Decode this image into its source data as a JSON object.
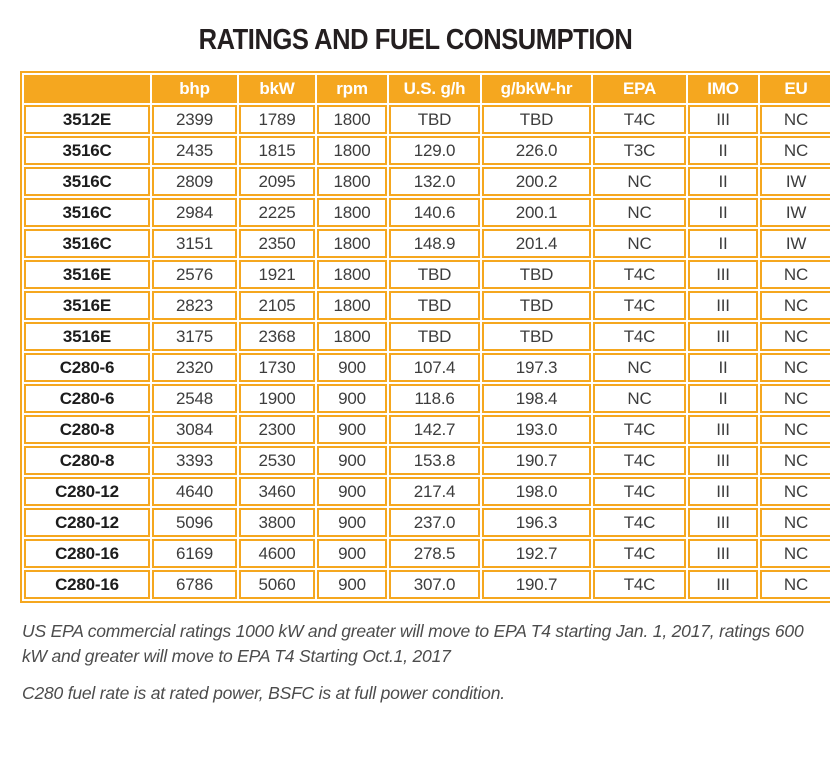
{
  "title": "RATINGS AND FUEL CONSUMPTION",
  "table": {
    "columns": [
      "",
      "bhp",
      "bkW",
      "rpm",
      "U.S. g/h",
      "g/bkW-hr",
      "EPA",
      "IMO",
      "EU"
    ],
    "rows": [
      [
        "3512E",
        "2399",
        "1789",
        "1800",
        "TBD",
        "TBD",
        "T4C",
        "III",
        "NC"
      ],
      [
        "3516C",
        "2435",
        "1815",
        "1800",
        "129.0",
        "226.0",
        "T3C",
        "II",
        "NC"
      ],
      [
        "3516C",
        "2809",
        "2095",
        "1800",
        "132.0",
        "200.2",
        "NC",
        "II",
        "IW"
      ],
      [
        "3516C",
        "2984",
        "2225",
        "1800",
        "140.6",
        "200.1",
        "NC",
        "II",
        "IW"
      ],
      [
        "3516C",
        "3151",
        "2350",
        "1800",
        "148.9",
        "201.4",
        "NC",
        "II",
        "IW"
      ],
      [
        "3516E",
        "2576",
        "1921",
        "1800",
        "TBD",
        "TBD",
        "T4C",
        "III",
        "NC"
      ],
      [
        "3516E",
        "2823",
        "2105",
        "1800",
        "TBD",
        "TBD",
        "T4C",
        "III",
        "NC"
      ],
      [
        "3516E",
        "3175",
        "2368",
        "1800",
        "TBD",
        "TBD",
        "T4C",
        "III",
        "NC"
      ],
      [
        "C280-6",
        "2320",
        "1730",
        "900",
        "107.4",
        "197.3",
        "NC",
        "II",
        "NC"
      ],
      [
        "C280-6",
        "2548",
        "1900",
        "900",
        "118.6",
        "198.4",
        "NC",
        "II",
        "NC"
      ],
      [
        "C280-8",
        "3084",
        "2300",
        "900",
        "142.7",
        "193.0",
        "T4C",
        "III",
        "NC"
      ],
      [
        "C280-8",
        "3393",
        "2530",
        "900",
        "153.8",
        "190.7",
        "T4C",
        "III",
        "NC"
      ],
      [
        "C280-12",
        "4640",
        "3460",
        "900",
        "217.4",
        "198.0",
        "T4C",
        "III",
        "NC"
      ],
      [
        "C280-12",
        "5096",
        "3800",
        "900",
        "237.0",
        "196.3",
        "T4C",
        "III",
        "NC"
      ],
      [
        "C280-16",
        "6169",
        "4600",
        "900",
        "278.5",
        "192.7",
        "T4C",
        "III",
        "NC"
      ],
      [
        "C280-16",
        "6786",
        "5060",
        "900",
        "307.0",
        "190.7",
        "T4C",
        "III",
        "NC"
      ]
    ]
  },
  "notes": [
    "US EPA commercial ratings 1000 kW and greater will move to EPA T4 starting Jan. 1, 2017, ratings 600 kW and greater will move to EPA T4 Starting Oct.1, 2017",
    "C280 fuel rate is at rated power, BSFC is at full power condition."
  ],
  "colors": {
    "accent_orange": "#F5A71F",
    "header_text": "#FFFFFF",
    "body_text": "#3D3D3D",
    "model_text": "#1C1C1C",
    "title_text": "#241F20",
    "note_text": "#4C4C4C",
    "background": "#FFFFFF"
  }
}
